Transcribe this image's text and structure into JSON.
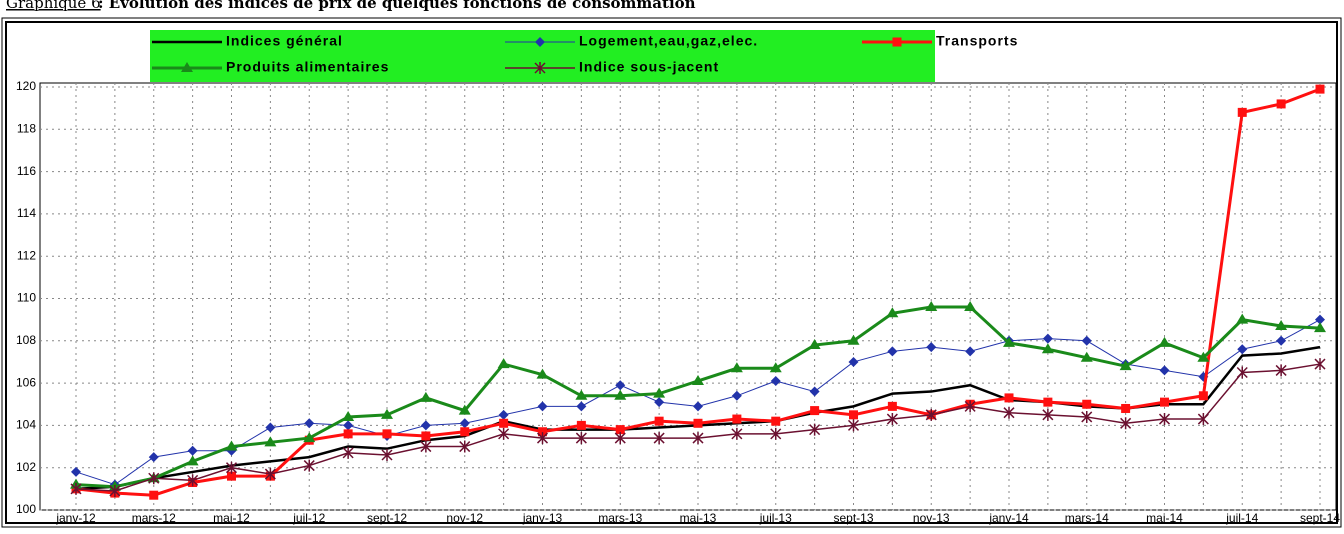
{
  "chart_data": {
    "type": "line",
    "title_prefix": "Graphique 6",
    "title": " : Evolution des indices de prix de quelques fonctions de consommation",
    "categories": [
      "janv-12",
      null,
      "mars-12",
      null,
      "mai-12",
      null,
      "juil-12",
      null,
      "sept-12",
      null,
      "nov-12",
      null,
      "janv-13",
      null,
      "mars-13",
      null,
      "mai-13",
      null,
      "juil-13",
      null,
      "sept-13",
      null,
      "nov-13",
      null,
      "janv-14",
      null,
      "mars-14",
      null,
      "mai-14",
      null,
      "juil-14",
      null,
      "sept-14"
    ],
    "ylim": [
      100,
      120
    ],
    "yticks": [
      100,
      102,
      104,
      106,
      108,
      110,
      112,
      114,
      116,
      118,
      120
    ],
    "grid": true,
    "series": [
      {
        "name": "Indices général",
        "color": "#000000",
        "marker": "none",
        "values": [
          101.0,
          101.1,
          101.5,
          101.8,
          102.1,
          102.3,
          102.5,
          103.0,
          102.9,
          103.3,
          103.5,
          104.2,
          103.8,
          103.8,
          103.8,
          103.9,
          104.0,
          104.1,
          104.2,
          104.6,
          104.9,
          105.5,
          105.6,
          105.9,
          105.2,
          105.1,
          104.9,
          104.8,
          105.0,
          105.0,
          107.3,
          107.4,
          107.7
        ]
      },
      {
        "name": "Logement,eau,gaz,elec.",
        "color": "#2233aa",
        "marker": "diamond",
        "values": [
          101.8,
          101.2,
          102.5,
          102.8,
          102.8,
          103.9,
          104.1,
          104.0,
          103.5,
          104.0,
          104.1,
          104.5,
          104.9,
          104.9,
          105.9,
          105.1,
          104.9,
          105.4,
          106.1,
          105.6,
          107.0,
          107.5,
          107.7,
          107.5,
          108.0,
          108.1,
          108.0,
          106.9,
          106.6,
          106.3,
          107.6,
          108.0,
          109.0
        ]
      },
      {
        "name": "Transports",
        "color": "#ff1010",
        "marker": "square",
        "values": [
          101.0,
          100.8,
          100.7,
          101.3,
          101.6,
          101.6,
          103.3,
          103.6,
          103.6,
          103.5,
          103.7,
          104.1,
          103.7,
          104.0,
          103.8,
          104.2,
          104.1,
          104.3,
          104.2,
          104.7,
          104.5,
          104.9,
          104.5,
          105.0,
          105.3,
          105.1,
          105.0,
          104.8,
          105.1,
          105.4,
          118.8,
          119.2,
          119.9
        ]
      },
      {
        "name": "Produits alimentaires",
        "color": "#1a8a1a",
        "marker": "triangle",
        "values": [
          101.2,
          101.1,
          101.5,
          102.3,
          103.0,
          103.2,
          103.4,
          104.4,
          104.5,
          105.3,
          104.7,
          106.9,
          106.4,
          105.4,
          105.4,
          105.5,
          106.1,
          106.7,
          106.7,
          107.8,
          108.0,
          109.3,
          109.6,
          109.6,
          107.9,
          107.6,
          107.2,
          106.8,
          107.9,
          107.2,
          109.0,
          108.7,
          108.6
        ]
      },
      {
        "name": "Indice sous-jacent",
        "color": "#6b1030",
        "marker": "asterisk",
        "values": [
          101.0,
          100.9,
          101.5,
          101.4,
          102.0,
          101.7,
          102.1,
          102.7,
          102.6,
          103.0,
          103.0,
          103.6,
          103.4,
          103.4,
          103.4,
          103.4,
          103.4,
          103.6,
          103.6,
          103.8,
          104.0,
          104.3,
          104.5,
          104.9,
          104.6,
          104.5,
          104.4,
          104.1,
          104.3,
          104.3,
          106.5,
          106.6,
          106.9
        ]
      }
    ],
    "legend_color": "#22ee22"
  }
}
